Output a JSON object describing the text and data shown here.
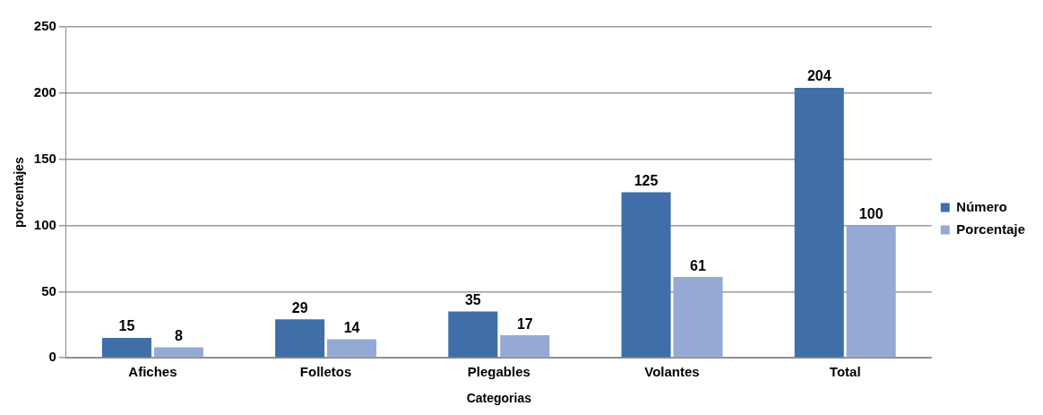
{
  "chart_data": {
    "type": "bar",
    "xlabel": "Categorias",
    "ylabel": "porcentajes",
    "categories": [
      "Afiches",
      "Folletos",
      "Plegables",
      "Volantes",
      "Total"
    ],
    "series": [
      {
        "name": "Número",
        "color": "#3f6ea8",
        "values": [
          15,
          29,
          35,
          125,
          204
        ]
      },
      {
        "name": "Porcentaje",
        "color": "#94a9d3",
        "values": [
          8,
          14,
          17,
          61,
          100
        ]
      }
    ],
    "ylim": [
      0,
      250
    ],
    "yticks": [
      0,
      50,
      100,
      150,
      200,
      250
    ],
    "grid": "y",
    "legend": "right",
    "data_labels": true
  }
}
